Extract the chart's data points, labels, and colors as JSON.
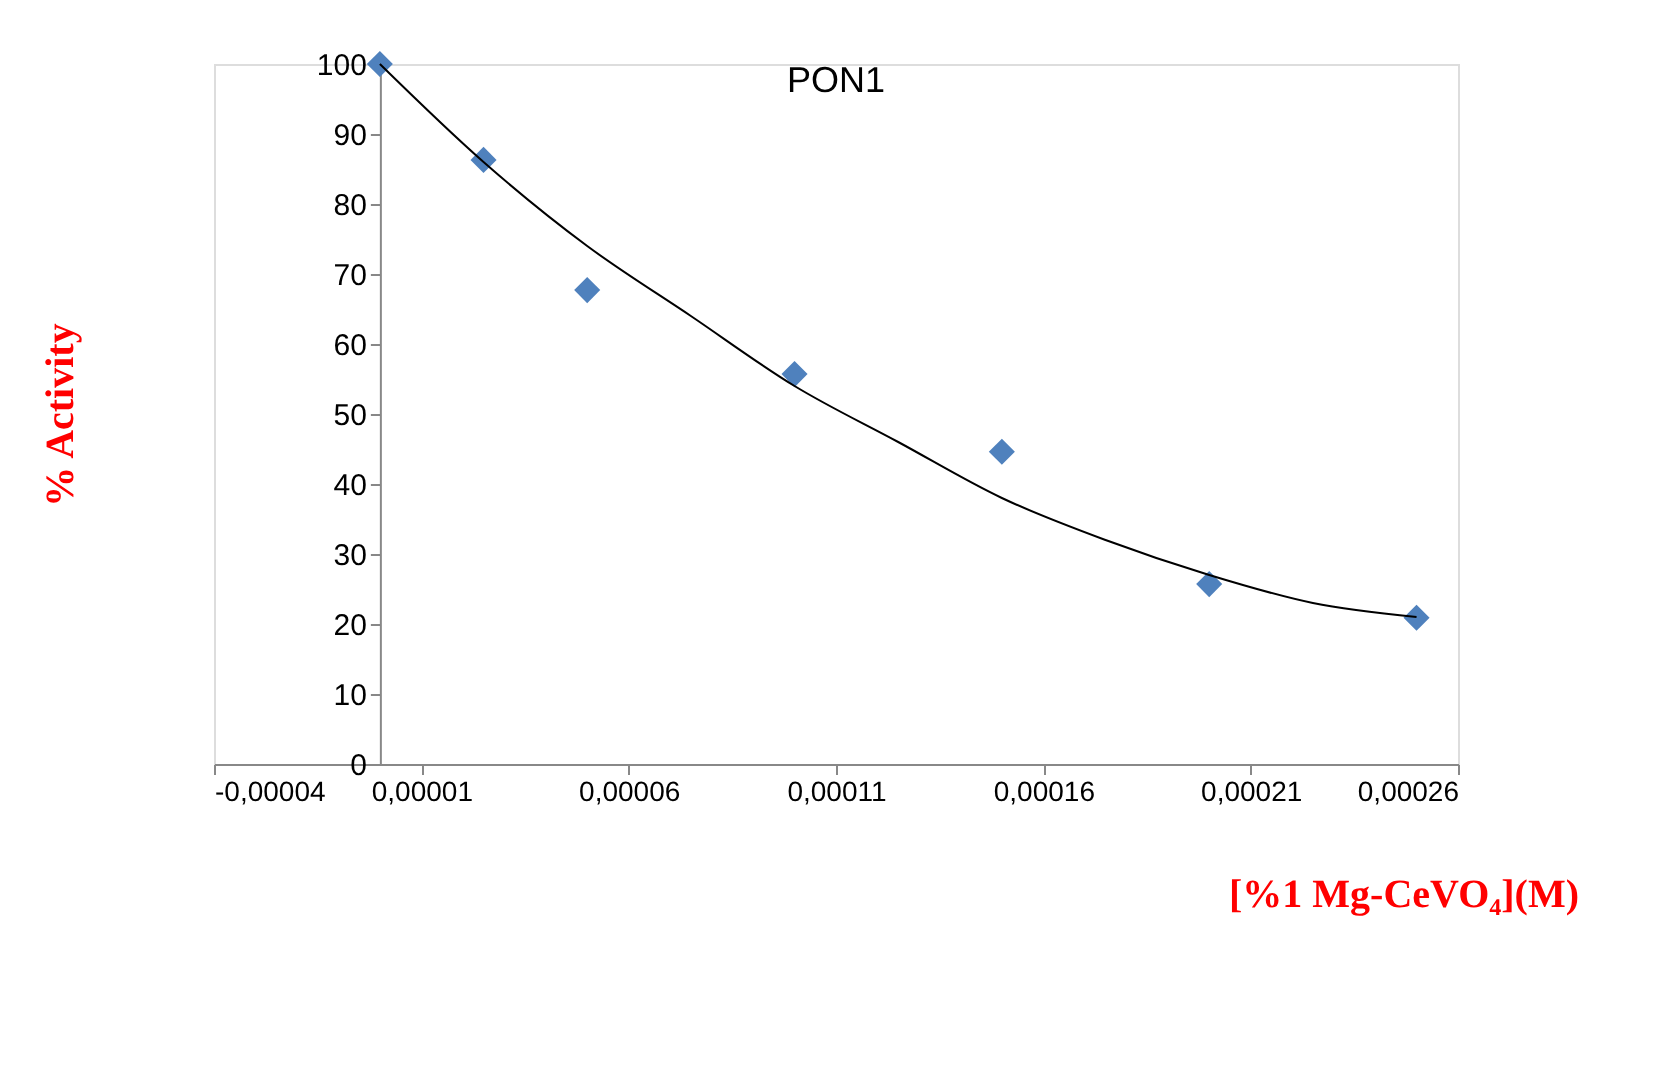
{
  "chart_data": {
    "type": "scatter",
    "title": "PON1",
    "xlabel": "[%1 Mg-CeVO₄](M)",
    "ylabel": "% Activity",
    "series": [
      {
        "color": "#4f81bd",
        "marker": "diamond",
        "x": [
          0,
          2.5e-05,
          5e-05,
          0.0001,
          0.00015,
          0.0002,
          0.00025
        ],
        "values": [
          100,
          86.3,
          67.7,
          55.7,
          44.6,
          25.7,
          20.9
        ]
      },
      {
        "type": "line",
        "color": "#000000",
        "marker": "none",
        "line_style": "solid",
        "x": [
          0,
          2.5e-05,
          5e-05,
          7.5e-05,
          0.0001,
          0.000125,
          0.00015,
          0.000175,
          0.0002,
          0.000225,
          0.00025
        ],
        "values": [
          100,
          86,
          74,
          64,
          54,
          46,
          38,
          32,
          27,
          23,
          21
        ]
      }
    ],
    "xlim": [
      -4e-05,
      0.00026
    ],
    "xticks": [
      {
        "value": -4e-05,
        "label": "-0,00004"
      },
      {
        "value": 1e-05,
        "label": "0,00001"
      },
      {
        "value": 6e-05,
        "label": "0,00006"
      },
      {
        "value": 0.00011,
        "label": "0,00011"
      },
      {
        "value": 0.00016,
        "label": "0,00016"
      },
      {
        "value": 0.00021,
        "label": "0,00021"
      },
      {
        "value": 0.00026,
        "label": "0,00026"
      }
    ],
    "ylim": [
      0,
      100
    ],
    "yticks": [
      0,
      10,
      20,
      30,
      40,
      50,
      60,
      70,
      80,
      90,
      100
    ],
    "grid": false,
    "legend": false
  }
}
